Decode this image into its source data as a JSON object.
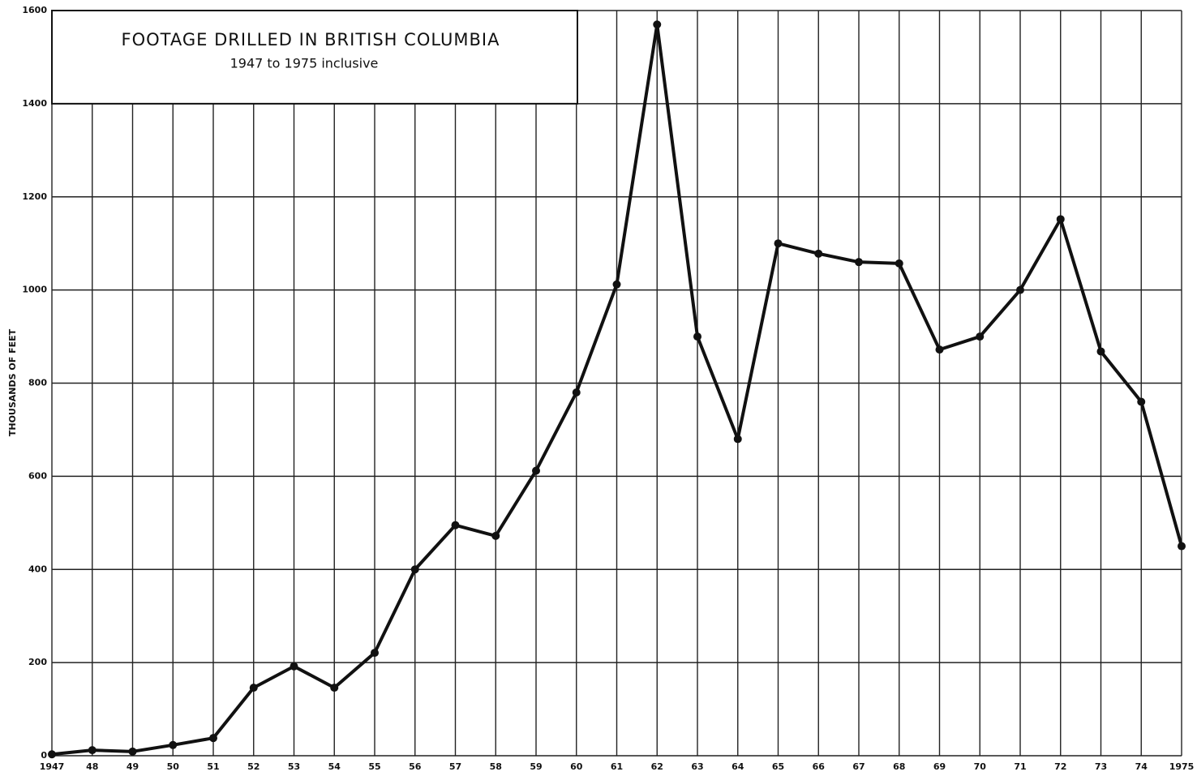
{
  "chart_data": {
    "type": "line",
    "title": "FOOTAGE DRILLED IN BRITISH COLUMBIA",
    "subtitle": "1947 to 1975  inclusive",
    "y_label": "THOUSANDS OF FEET",
    "categories": [
      "1947",
      "48",
      "49",
      "50",
      "51",
      "52",
      "53",
      "54",
      "55",
      "56",
      "57",
      "58",
      "59",
      "60",
      "61",
      "62",
      "63",
      "64",
      "65",
      "66",
      "67",
      "68",
      "69",
      "70",
      "71",
      "72",
      "73",
      "74",
      "1975"
    ],
    "series": [
      {
        "name": "Footage drilled",
        "color": "#111111",
        "values": [
          3,
          12,
          9,
          23,
          38,
          146,
          192,
          146,
          221,
          400,
          495,
          472,
          612,
          780,
          1012,
          1570,
          900,
          680,
          1100,
          1078,
          1060,
          1057,
          872,
          900,
          1000,
          1152,
          868,
          760,
          450
        ]
      }
    ],
    "ylim": [
      0,
      1600
    ],
    "yticks": [
      0,
      200,
      400,
      600,
      800,
      1000,
      1200,
      1400,
      1600
    ],
    "grid": true
  }
}
